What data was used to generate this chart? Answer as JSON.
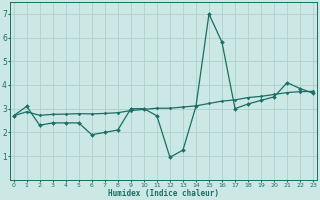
{
  "xlabel": "Humidex (Indice chaleur)",
  "bg_color": "#cce8e5",
  "line_color": "#1a6e65",
  "grid_color": "#aecfcc",
  "x_data": [
    0,
    1,
    2,
    3,
    4,
    5,
    6,
    7,
    8,
    9,
    10,
    11,
    12,
    13,
    14,
    15,
    16,
    17,
    18,
    19,
    20,
    21,
    22,
    23
  ],
  "y_main": [
    2.7,
    3.1,
    2.3,
    2.4,
    2.4,
    2.4,
    1.9,
    2.0,
    2.1,
    3.0,
    3.0,
    2.7,
    0.95,
    1.25,
    3.1,
    7.0,
    5.8,
    3.0,
    3.2,
    3.35,
    3.5,
    4.1,
    3.85,
    3.65
  ],
  "y_trend": [
    2.7,
    2.87,
    2.72,
    2.76,
    2.77,
    2.79,
    2.78,
    2.8,
    2.83,
    2.92,
    2.97,
    3.02,
    3.02,
    3.07,
    3.12,
    3.22,
    3.32,
    3.37,
    3.47,
    3.52,
    3.6,
    3.68,
    3.72,
    3.73
  ],
  "xlim": [
    -0.3,
    23.3
  ],
  "ylim": [
    0,
    7.5
  ],
  "yticks": [
    1,
    2,
    3,
    4,
    5,
    6,
    7
  ],
  "xticks": [
    0,
    1,
    2,
    3,
    4,
    5,
    6,
    7,
    8,
    9,
    10,
    11,
    12,
    13,
    14,
    15,
    16,
    17,
    18,
    19,
    20,
    21,
    22,
    23
  ]
}
